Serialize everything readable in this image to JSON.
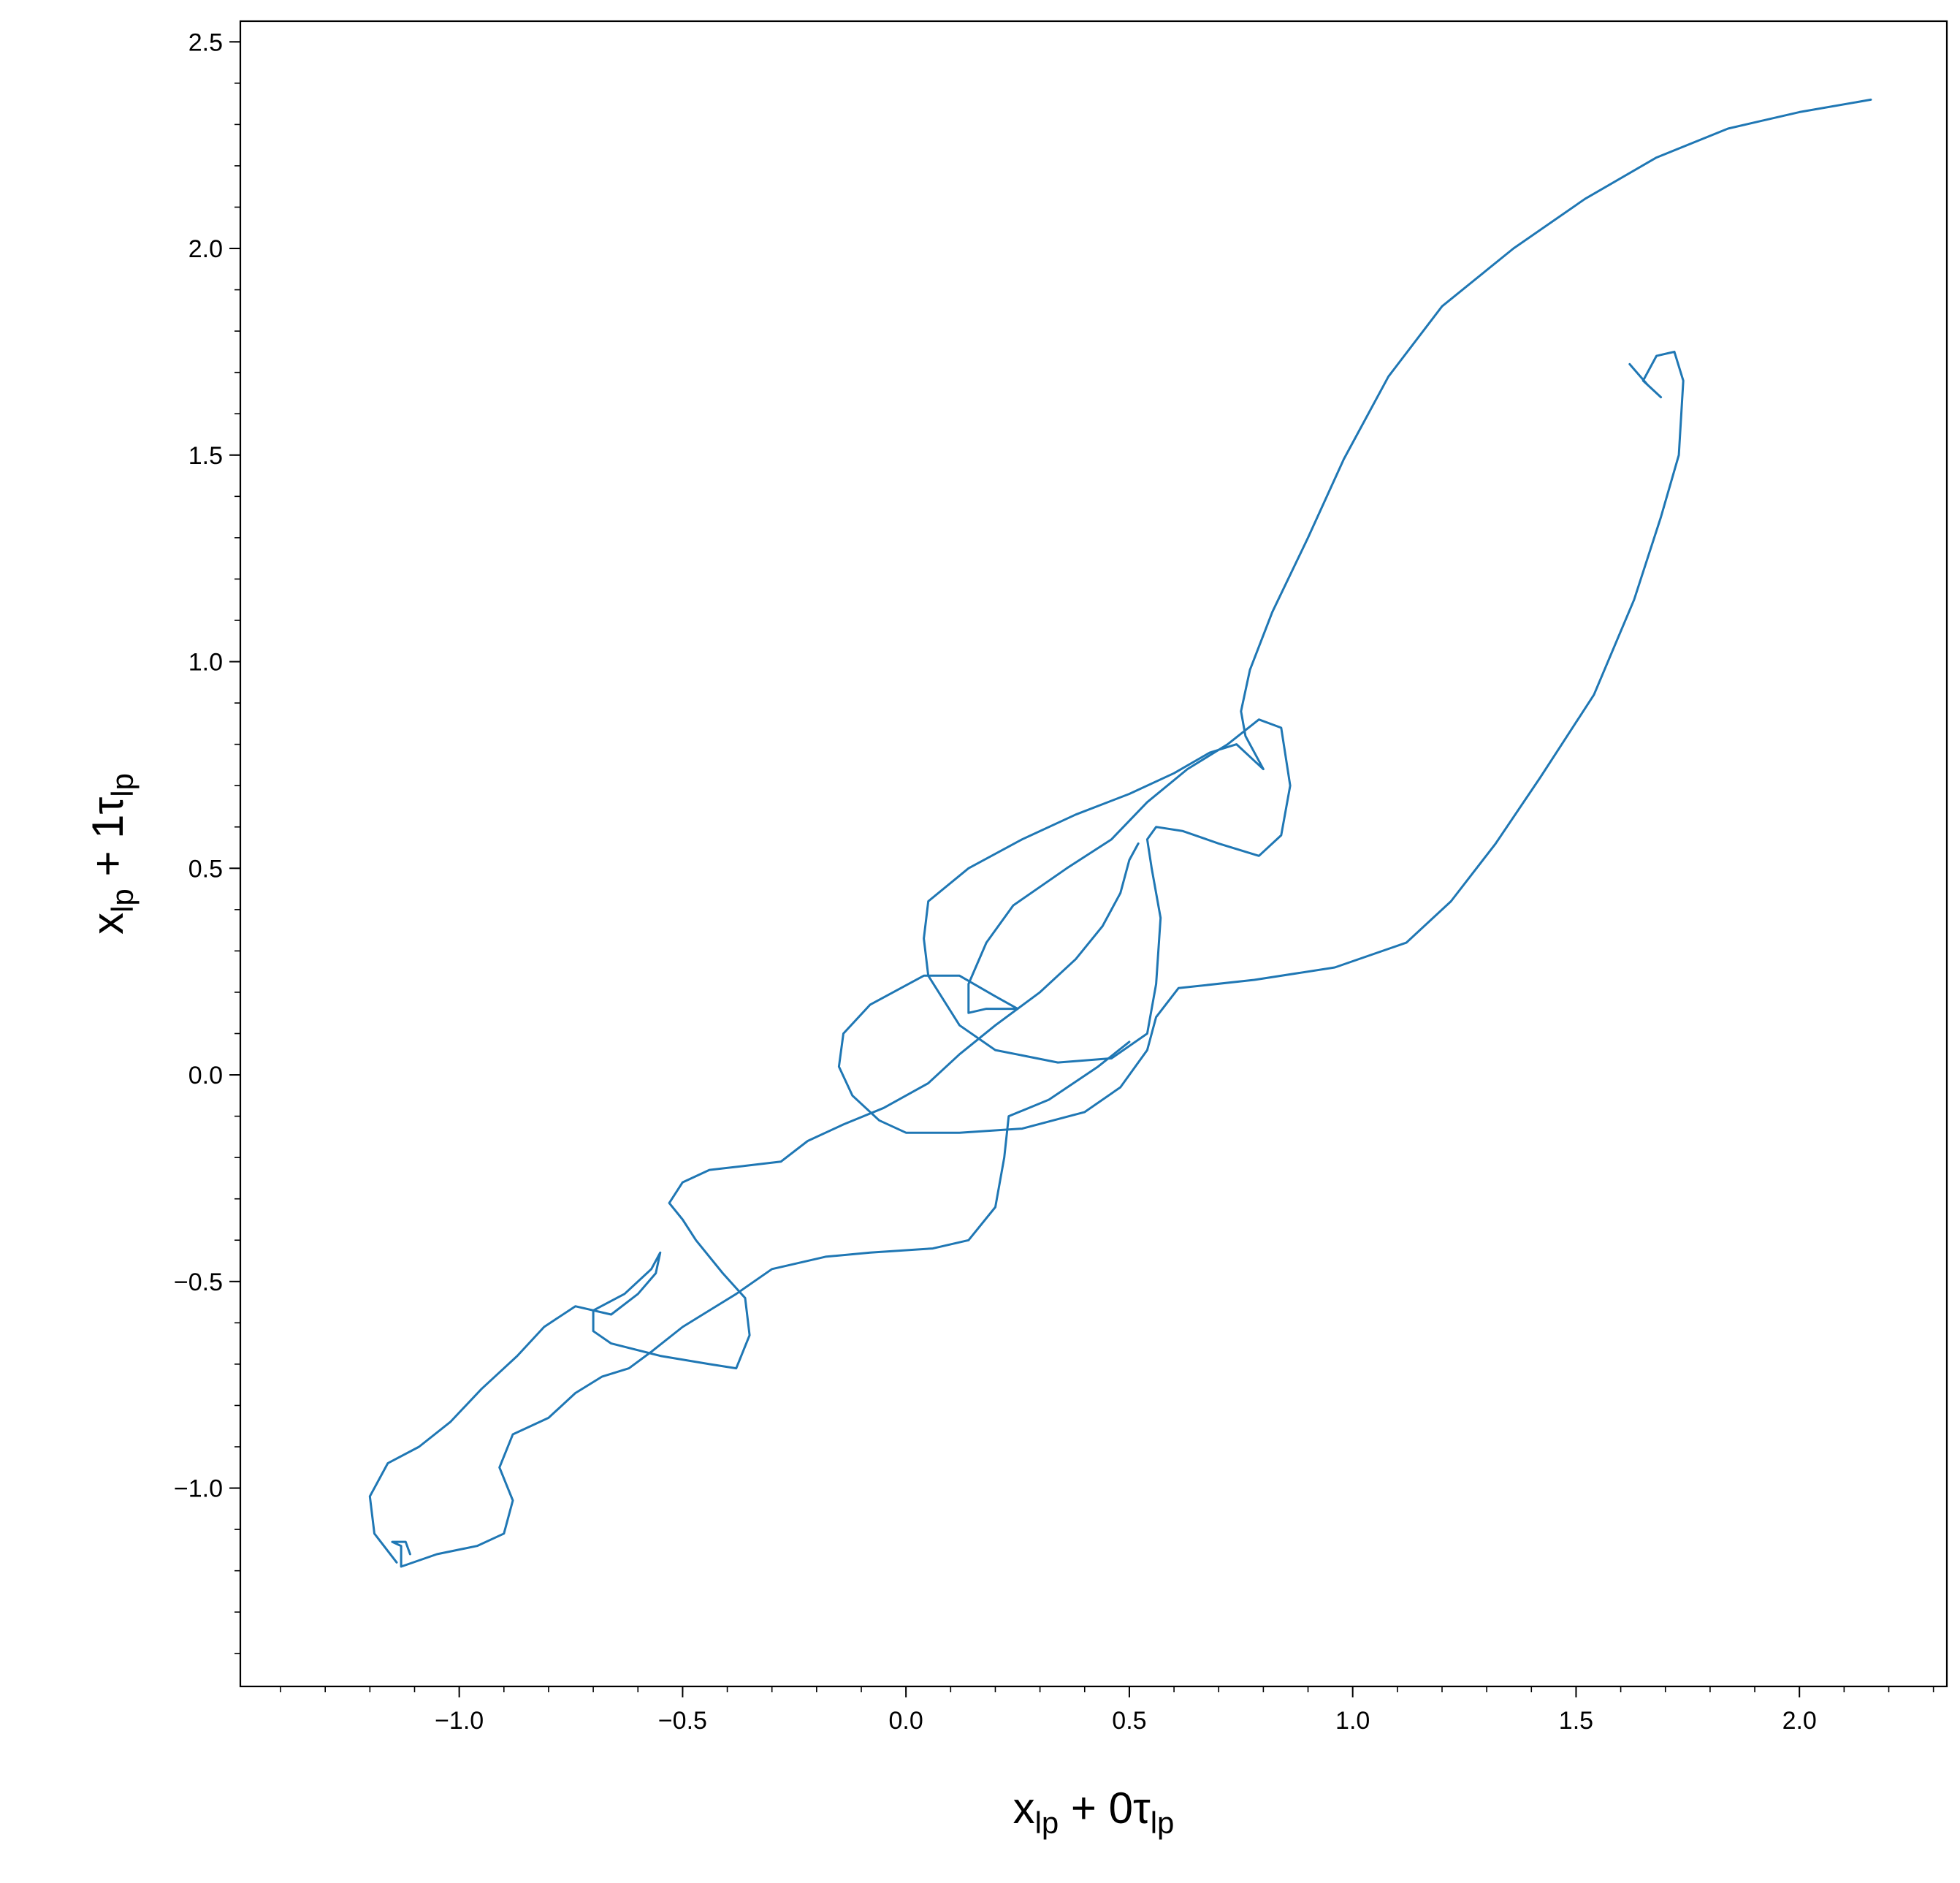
{
  "chart_data": {
    "type": "line",
    "title": "",
    "xlabel": {
      "main": "x",
      "sub1": "lp",
      "mid": " + 0τ",
      "sub2": "lp"
    },
    "ylabel": {
      "main": "x",
      "sub1": "lp",
      "mid": " + 1τ",
      "sub2": "lp"
    },
    "xlim": [
      -1.49,
      2.33
    ],
    "ylim": [
      -1.48,
      2.55
    ],
    "xticks": [
      -1.0,
      -0.5,
      0.0,
      0.5,
      1.0,
      1.5,
      2.0
    ],
    "xtick_labels": [
      "−1.0",
      "−0.5",
      "0.0",
      "0.5",
      "1.0",
      "1.5",
      "2.0"
    ],
    "yticks": [
      -1.0,
      -0.5,
      0.0,
      0.5,
      1.0,
      1.5,
      2.0,
      2.5
    ],
    "ytick_labels": [
      "−1.0",
      "−0.5",
      "0.0",
      "0.5",
      "1.0",
      "1.5",
      "2.0",
      "2.5"
    ],
    "minor_step": 0.1,
    "grid": false,
    "legend": "none",
    "line_color": "#1f77b4",
    "series": [
      {
        "points": [
          [
            2.16,
            2.36
          ],
          [
            2.0,
            2.33
          ],
          [
            1.84,
            2.29
          ],
          [
            1.68,
            2.22
          ],
          [
            1.52,
            2.12
          ],
          [
            1.36,
            2.0
          ],
          [
            1.2,
            1.86
          ],
          [
            1.08,
            1.69
          ],
          [
            0.98,
            1.49
          ],
          [
            0.9,
            1.3
          ],
          [
            0.82,
            1.12
          ],
          [
            0.77,
            0.98
          ],
          [
            0.75,
            0.88
          ],
          [
            0.76,
            0.82
          ],
          [
            0.79,
            0.76
          ],
          [
            0.8,
            0.74
          ],
          [
            0.78,
            0.76
          ],
          [
            0.74,
            0.8
          ],
          [
            0.68,
            0.78
          ],
          [
            0.6,
            0.73
          ],
          [
            0.5,
            0.68
          ],
          [
            0.38,
            0.63
          ],
          [
            0.26,
            0.57
          ],
          [
            0.14,
            0.5
          ],
          [
            0.05,
            0.42
          ],
          [
            0.04,
            0.33
          ],
          [
            0.05,
            0.24
          ],
          [
            0.12,
            0.12
          ],
          [
            0.2,
            0.06
          ],
          [
            0.34,
            0.03
          ],
          [
            0.46,
            0.04
          ],
          [
            0.54,
            0.1
          ],
          [
            0.56,
            0.22
          ],
          [
            0.57,
            0.38
          ],
          [
            0.55,
            0.5
          ],
          [
            0.54,
            0.57
          ],
          [
            0.56,
            0.6
          ],
          [
            0.62,
            0.59
          ],
          [
            0.7,
            0.56
          ],
          [
            0.79,
            0.53
          ],
          [
            0.84,
            0.58
          ],
          [
            0.86,
            0.7
          ],
          [
            0.84,
            0.84
          ],
          [
            0.79,
            0.86
          ],
          [
            0.72,
            0.8
          ],
          [
            0.63,
            0.74
          ],
          [
            0.54,
            0.66
          ],
          [
            0.46,
            0.57
          ],
          [
            0.36,
            0.5
          ],
          [
            0.24,
            0.41
          ],
          [
            0.18,
            0.32
          ],
          [
            0.14,
            0.22
          ],
          [
            0.14,
            0.15
          ],
          [
            0.18,
            0.16
          ],
          [
            0.25,
            0.16
          ],
          [
            0.2,
            0.19
          ],
          [
            0.12,
            0.24
          ],
          [
            0.04,
            0.24
          ],
          [
            -0.08,
            0.17
          ],
          [
            -0.14,
            0.1
          ],
          [
            -0.15,
            0.02
          ],
          [
            -0.12,
            -0.05
          ],
          [
            -0.06,
            -0.11
          ],
          [
            0.0,
            -0.14
          ],
          [
            0.12,
            -0.14
          ],
          [
            0.26,
            -0.13
          ],
          [
            0.4,
            -0.09
          ],
          [
            0.48,
            -0.03
          ],
          [
            0.54,
            0.06
          ],
          [
            0.56,
            0.14
          ],
          [
            0.61,
            0.21
          ],
          [
            0.78,
            0.23
          ],
          [
            0.96,
            0.26
          ],
          [
            1.12,
            0.32
          ],
          [
            1.22,
            0.42
          ],
          [
            1.32,
            0.56
          ],
          [
            1.42,
            0.72
          ],
          [
            1.54,
            0.92
          ],
          [
            1.63,
            1.15
          ],
          [
            1.69,
            1.35
          ],
          [
            1.73,
            1.5
          ],
          [
            1.74,
            1.68
          ],
          [
            1.72,
            1.75
          ],
          [
            1.68,
            1.74
          ],
          [
            1.65,
            1.68
          ],
          [
            1.69,
            1.64
          ],
          [
            1.66,
            1.67
          ],
          [
            1.62,
            1.72
          ]
        ]
      },
      {
        "points": [
          [
            0.5,
            0.08
          ],
          [
            0.43,
            0.02
          ],
          [
            0.32,
            -0.06
          ],
          [
            0.23,
            -0.1
          ],
          [
            0.22,
            -0.2
          ],
          [
            0.2,
            -0.32
          ],
          [
            0.14,
            -0.4
          ],
          [
            0.06,
            -0.42
          ],
          [
            -0.08,
            -0.43
          ],
          [
            -0.18,
            -0.44
          ],
          [
            -0.3,
            -0.47
          ],
          [
            -0.38,
            -0.53
          ],
          [
            -0.44,
            -0.57
          ],
          [
            -0.5,
            -0.61
          ],
          [
            -0.57,
            -0.67
          ],
          [
            -0.62,
            -0.71
          ],
          [
            -0.68,
            -0.73
          ],
          [
            -0.74,
            -0.77
          ],
          [
            -0.8,
            -0.83
          ],
          [
            -0.88,
            -0.87
          ],
          [
            -0.91,
            -0.95
          ],
          [
            -0.88,
            -1.03
          ],
          [
            -0.9,
            -1.11
          ],
          [
            -0.96,
            -1.14
          ],
          [
            -1.05,
            -1.16
          ],
          [
            -1.13,
            -1.19
          ],
          [
            -1.13,
            -1.14
          ],
          [
            -1.15,
            -1.13
          ],
          [
            -1.12,
            -1.13
          ],
          [
            -1.11,
            -1.16
          ]
        ]
      },
      {
        "points": [
          [
            -1.14,
            -1.18
          ],
          [
            -1.19,
            -1.11
          ],
          [
            -1.2,
            -1.02
          ],
          [
            -1.16,
            -0.94
          ],
          [
            -1.09,
            -0.9
          ],
          [
            -1.02,
            -0.84
          ],
          [
            -0.95,
            -0.76
          ],
          [
            -0.91,
            -0.72
          ],
          [
            -0.87,
            -0.68
          ],
          [
            -0.81,
            -0.61
          ],
          [
            -0.74,
            -0.56
          ],
          [
            -0.66,
            -0.58
          ],
          [
            -0.6,
            -0.53
          ],
          [
            -0.56,
            -0.48
          ],
          [
            -0.55,
            -0.43
          ],
          [
            -0.57,
            -0.47
          ],
          [
            -0.63,
            -0.53
          ],
          [
            -0.7,
            -0.57
          ],
          [
            -0.7,
            -0.62
          ],
          [
            -0.66,
            -0.65
          ],
          [
            -0.55,
            -0.68
          ],
          [
            -0.44,
            -0.7
          ],
          [
            -0.38,
            -0.71
          ],
          [
            -0.35,
            -0.63
          ],
          [
            -0.36,
            -0.54
          ],
          [
            -0.41,
            -0.48
          ],
          [
            -0.47,
            -0.4
          ],
          [
            -0.5,
            -0.35
          ],
          [
            -0.53,
            -0.31
          ],
          [
            -0.5,
            -0.26
          ],
          [
            -0.44,
            -0.23
          ],
          [
            -0.36,
            -0.22
          ],
          [
            -0.28,
            -0.21
          ],
          [
            -0.22,
            -0.16
          ],
          [
            -0.14,
            -0.12
          ],
          [
            -0.05,
            -0.08
          ],
          [
            0.05,
            -0.02
          ],
          [
            0.12,
            0.05
          ],
          [
            0.2,
            0.12
          ],
          [
            0.3,
            0.2
          ],
          [
            0.38,
            0.28
          ],
          [
            0.44,
            0.36
          ],
          [
            0.48,
            0.44
          ],
          [
            0.5,
            0.52
          ],
          [
            0.52,
            0.56
          ]
        ]
      }
    ]
  }
}
